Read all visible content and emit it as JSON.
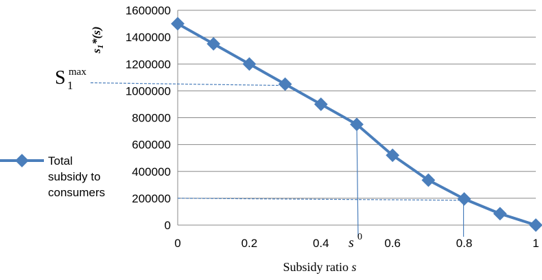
{
  "chart_data": {
    "type": "line",
    "xlabel": "Subsidy ratio s",
    "ylabel": "s1*(s)",
    "xlim": [
      0,
      1
    ],
    "ylim": [
      0,
      1600000
    ],
    "x_ticks": [
      "0",
      "0.2",
      "0.4",
      "0.6",
      "0.8",
      "1"
    ],
    "y_ticks": [
      "0",
      "200000",
      "400000",
      "600000",
      "800000",
      "1000000",
      "1200000",
      "1400000",
      "1600000"
    ],
    "grid": "horizontal",
    "legend_position": "left",
    "series": [
      {
        "name": "Total subsidy to consumers",
        "color": "#4a7ebb",
        "marker": "diamond",
        "x": [
          0,
          0.1,
          0.2,
          0.3,
          0.4,
          0.5,
          0.6,
          0.7,
          0.8,
          0.9,
          1.0
        ],
        "y": [
          1500000,
          1350000,
          1200000,
          1050000,
          900000,
          750000,
          520000,
          335000,
          195000,
          85000,
          0
        ]
      }
    ],
    "annotations": {
      "smax_label": "S",
      "smax_sub": "1",
      "smax_sup": "max",
      "smax_value": 1050000,
      "smax_x": 0.3,
      "s0_label": "s",
      "s0_sup": "0",
      "s0_x": 0.5,
      "s0_value": 750000,
      "s08_x": 0.8,
      "s08_value": 195000
    }
  }
}
